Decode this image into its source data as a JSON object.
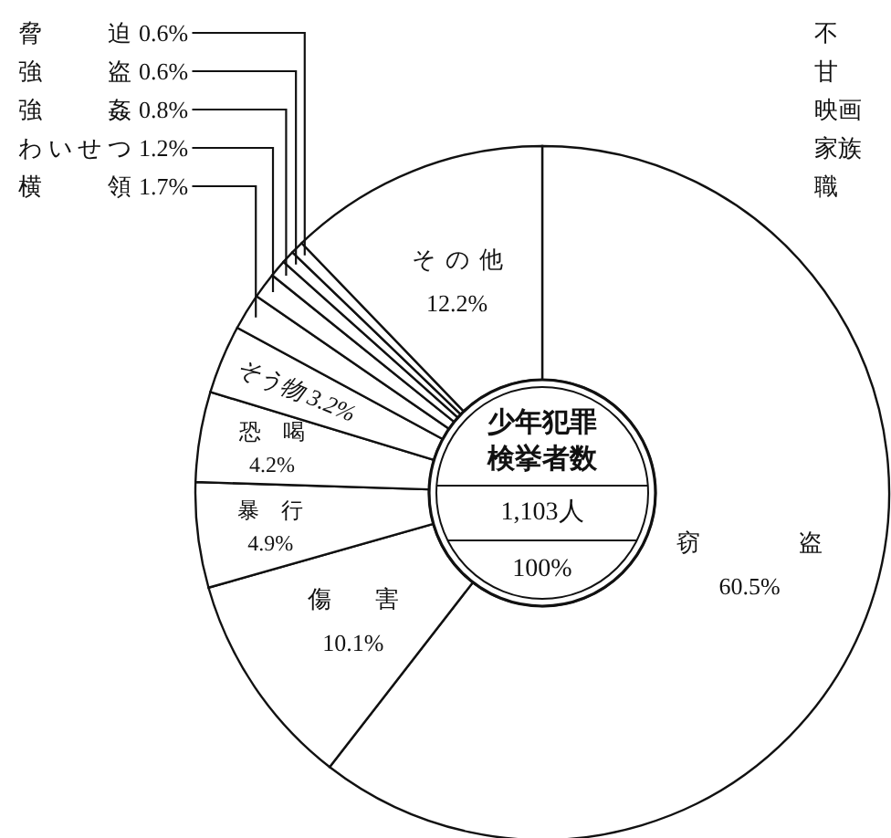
{
  "chart_data": {
    "type": "donut",
    "categories": [
      "窃盗",
      "傷害",
      "暴行",
      "恐喝",
      "そう物",
      "横領",
      "わいせつ",
      "強姦",
      "強盗",
      "脅迫",
      "その他"
    ],
    "values": [
      60.5,
      10.1,
      4.9,
      4.2,
      3.2,
      1.7,
      1.2,
      0.8,
      0.6,
      0.6,
      12.2
    ],
    "value_labels": [
      "60.5%",
      "10.1%",
      "4.9%",
      "4.2%",
      "3.2%",
      "1.7%",
      "1.2%",
      "0.8%",
      "0.6%",
      "0.6%",
      "12.2%"
    ],
    "colors": [
      "#ffffff",
      "#ffffff",
      "#ffffff",
      "#ffffff",
      "#ffffff",
      "#ffffff",
      "#ffffff",
      "#ffffff",
      "#ffffff",
      "#ffffff",
      "#ffffff"
    ],
    "annotations": [
      "少年犯罪",
      "検挙者数",
      "1,103人",
      "100%",
      "不",
      "甘",
      "映画",
      "家族",
      "職"
    ]
  }
}
